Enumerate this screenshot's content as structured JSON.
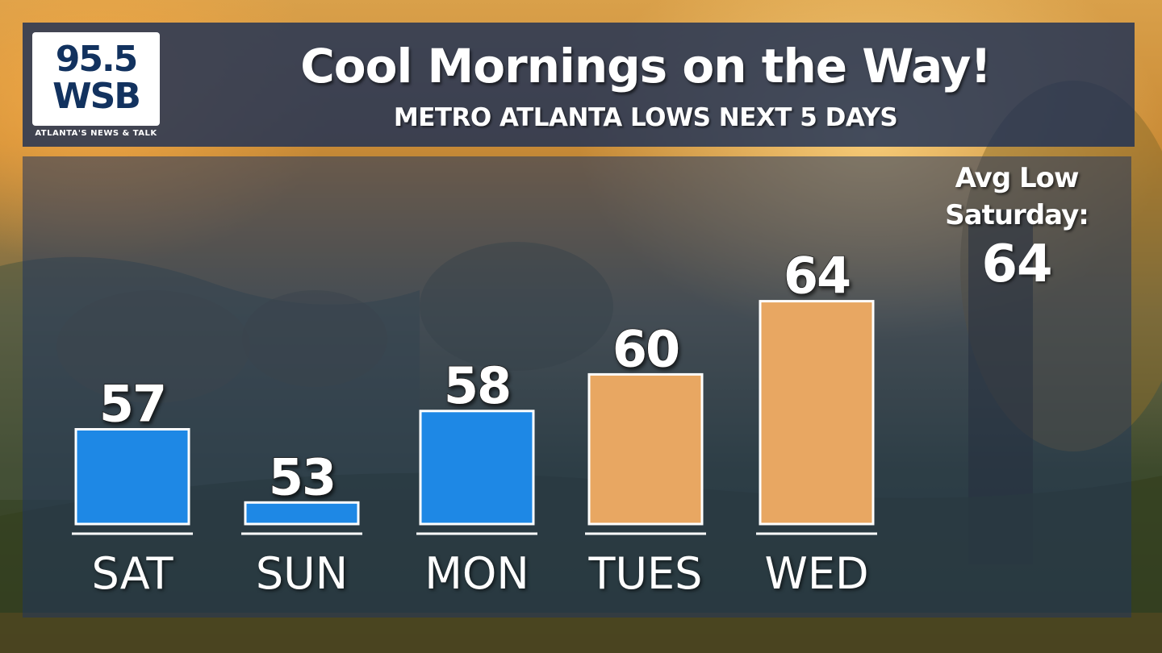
{
  "branding": {
    "logo_line1": "95.5",
    "logo_line2": "WSB",
    "logo_tagline": "ATLANTA'S NEWS & TALK"
  },
  "header": {
    "title": "Cool Mornings on the Way!",
    "subtitle": "METRO ATLANTA LOWS NEXT 5 DAYS"
  },
  "average": {
    "label_line1": "Avg Low",
    "label_line2": "Saturday:",
    "value": "64"
  },
  "colors": {
    "below_average": "#1e88e5",
    "above_average": "#e8a762",
    "bar_border": "#ffffff",
    "header_bg": "#1c3056"
  },
  "chart_data": {
    "type": "bar",
    "categories": [
      "SAT",
      "SUN",
      "MON",
      "TUES",
      "WED"
    ],
    "values": [
      57,
      53,
      58,
      60,
      64
    ],
    "data_labels": [
      "57",
      "53",
      "58",
      "60",
      "64"
    ],
    "bar_colors": [
      "#1e88e5",
      "#1e88e5",
      "#1e88e5",
      "#e8a762",
      "#e8a762"
    ],
    "title": "Cool Mornings on the Way!",
    "subtitle": "METRO ATLANTA LOWS NEXT 5 DAYS",
    "xlabel": "",
    "ylabel": "",
    "ylim": [
      52,
      64
    ],
    "grid": false,
    "legend": "none"
  }
}
